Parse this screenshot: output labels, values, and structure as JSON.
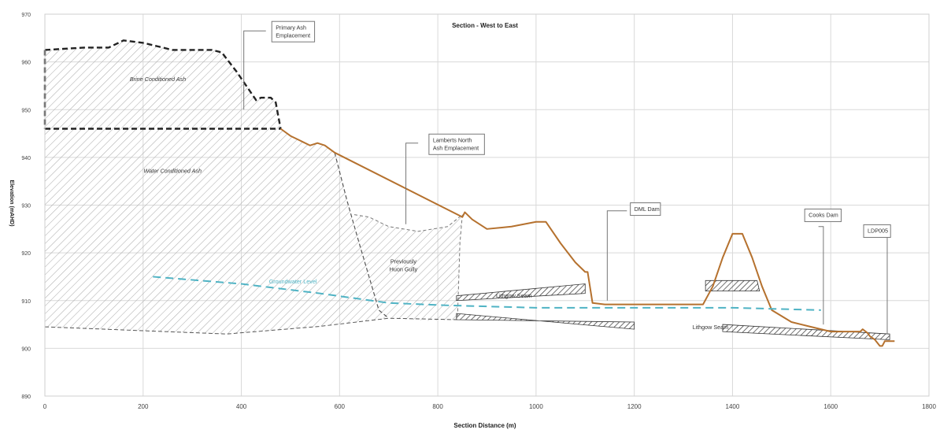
{
  "chart_data": {
    "type": "line",
    "title": "Section - West to East",
    "xlabel": "Section Distance (m)",
    "ylabel": "Elevation (mAHD)",
    "xlim": [
      0,
      1800
    ],
    "ylim": [
      890,
      970
    ],
    "xticks": [
      0,
      200,
      400,
      600,
      800,
      1000,
      1200,
      1400,
      1600,
      1800
    ],
    "yticks": [
      890,
      900,
      910,
      920,
      930,
      940,
      950,
      960,
      970
    ],
    "grid": true,
    "colors": {
      "ground": "#b5712e",
      "groundwater": "#4fb3c4",
      "outline": "#222222",
      "hatch": "#9a9a9a",
      "seam": "#333333",
      "grid": "#d9d9d9"
    },
    "series": [
      {
        "name": "ground_surface",
        "x": [
          480,
          500,
          520,
          540,
          555,
          570,
          590,
          850,
          855,
          870,
          900,
          950,
          1000,
          1020,
          1050,
          1080,
          1100,
          1105,
          1115,
          1140,
          1200,
          1250,
          1300,
          1340,
          1360,
          1380,
          1400,
          1420,
          1440,
          1460,
          1480,
          1520,
          1560,
          1600,
          1640,
          1660,
          1665,
          1675,
          1680,
          1690,
          1700,
          1705,
          1710,
          1730
        ],
        "y": [
          946,
          944.5,
          943.5,
          942.5,
          943,
          942.5,
          941,
          927.5,
          928.5,
          927,
          925,
          925.5,
          926.5,
          926.5,
          922,
          918,
          916,
          916,
          909.5,
          909.2,
          909.2,
          909.2,
          909.2,
          909.2,
          913,
          919,
          924,
          924,
          919,
          913,
          908,
          905.5,
          904.5,
          903.5,
          903.5,
          903.5,
          904,
          903.2,
          902.5,
          901.8,
          900.5,
          900.5,
          901.5,
          901.5
        ]
      },
      {
        "name": "ash_top",
        "x": [
          0,
          80,
          130,
          160,
          200,
          260,
          300,
          340,
          360,
          390,
          410,
          430,
          440,
          460,
          470,
          480
        ],
        "y": [
          962.5,
          963,
          963,
          964.5,
          964,
          962.5,
          962.5,
          962.5,
          962,
          958,
          955,
          952,
          952.5,
          952.5,
          951.5,
          946
        ]
      },
      {
        "name": "groundwater_level",
        "x": [
          220,
          400,
          560,
          700,
          820,
          1000,
          1100,
          1200,
          1400,
          1580
        ],
        "y": [
          915,
          913.5,
          911.5,
          909.5,
          909,
          908.5,
          908.5,
          908.5,
          908.5,
          908
        ]
      }
    ],
    "annotations": [
      {
        "text": "Primary Ash Emplacement",
        "lines": [
          "Primary Ash",
          "Emplacement"
        ],
        "x": 470,
        "y": 966.8,
        "boxed": true
      },
      {
        "text": "Lamberts North Ash Emplacement",
        "lines": [
          "Lamberts North",
          "Ash Emplacement"
        ],
        "x": 790,
        "y": 943.2,
        "boxed": true
      },
      {
        "text": "DML Dam",
        "lines": [
          "DML Dam"
        ],
        "x": 1200,
        "y": 928.8,
        "boxed": true
      },
      {
        "text": "Cooks Dam",
        "lines": [
          "Cooks Dam"
        ],
        "x": 1555,
        "y": 927.5,
        "boxed": true
      },
      {
        "text": "LDP005",
        "lines": [
          "LDP005"
        ],
        "x": 1675,
        "y": 924.2,
        "boxed": true
      },
      {
        "text": "Brine Conditioned Ash",
        "lines": [
          "Brine Conditioned Ash"
        ],
        "x": 230,
        "y": 956,
        "boxed": false,
        "italic": true
      },
      {
        "text": "Water Conditioned Ash",
        "lines": [
          "Water Conditioned Ash"
        ],
        "x": 260,
        "y": 936.8,
        "boxed": false,
        "italic": true
      },
      {
        "text": "Previously Huon Gully",
        "lines": [
          "Previously",
          "Huon Gully"
        ],
        "x": 730,
        "y": 917.8,
        "boxed": false
      },
      {
        "text": "Groundwater Level",
        "lines": [
          "Groundwater Level"
        ],
        "x": 505,
        "y": 913.6,
        "boxed": false,
        "color": "#4fb3c4"
      },
      {
        "text": "Lithgow Seam",
        "lines": [
          "Lithgow Seam"
        ],
        "x": 955,
        "y": 910.6,
        "boxed": false
      },
      {
        "text": "Lithgow Seam",
        "lines": [
          "Lithgow Seam"
        ],
        "x": 1355,
        "y": 904,
        "boxed": false
      }
    ]
  }
}
